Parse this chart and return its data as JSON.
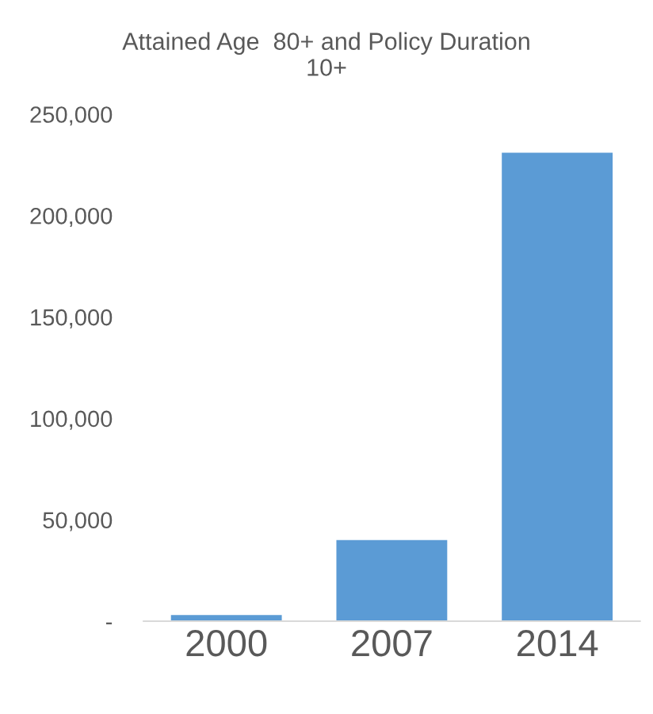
{
  "chart_data": {
    "type": "bar",
    "title": "Attained Age  80+ and Policy Duration\n10+",
    "categories": [
      "2000",
      "2007",
      "2014"
    ],
    "values": [
      3000,
      40000,
      231000
    ],
    "color": "#5b9bd5",
    "ylim": [
      0,
      250000
    ],
    "yticks": [
      {
        "value": 0,
        "label": "-"
      },
      {
        "value": 50000,
        "label": "50,000"
      },
      {
        "value": 100000,
        "label": "100,000"
      },
      {
        "value": 150000,
        "label": "150,000"
      },
      {
        "value": 200000,
        "label": "200,000"
      },
      {
        "value": 250000,
        "label": "250,000"
      }
    ],
    "grid": false,
    "legend": false
  }
}
